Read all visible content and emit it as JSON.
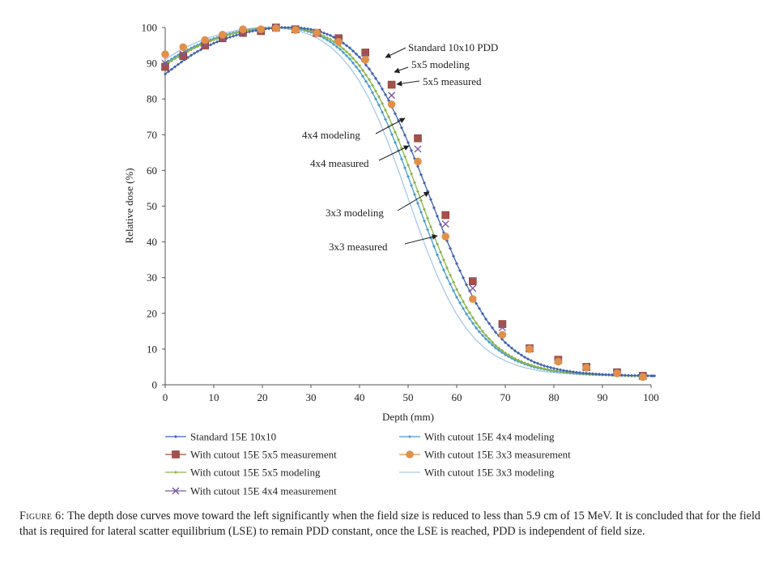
{
  "chart_data": {
    "type": "line",
    "xlabel": "Depth (mm)",
    "ylabel": "Relative dose (%)",
    "xlim": [
      0,
      100
    ],
    "ylim": [
      0,
      100
    ],
    "x_ticks": [
      0,
      10,
      20,
      30,
      40,
      50,
      60,
      70,
      80,
      90,
      100
    ],
    "y_ticks": [
      0,
      10,
      20,
      30,
      40,
      50,
      60,
      70,
      80,
      90,
      100
    ],
    "grid": false,
    "legend_position": "bottom",
    "series": [
      {
        "name": "Standard 15E 10x10",
        "style": "line-small-diamond",
        "color": "#3f62ad",
        "x": [
          0,
          2,
          4,
          6,
          8,
          10,
          12,
          14,
          16,
          18,
          20,
          22,
          24,
          26,
          28,
          30,
          32,
          34,
          36,
          38,
          40,
          42,
          44,
          46,
          48,
          50,
          52,
          54,
          56,
          58,
          60,
          62,
          64,
          66,
          68,
          70,
          72,
          74,
          76,
          78,
          80,
          82,
          84,
          86,
          88,
          90,
          92,
          94,
          96,
          98,
          100,
          101
        ],
        "y": [
          87,
          89,
          91,
          92.8,
          94.3,
          95.6,
          96.7,
          97.6,
          98.4,
          99,
          99.5,
          99.8,
          100,
          100,
          99.9,
          99.5,
          98.8,
          97.8,
          96.3,
          94.3,
          91.7,
          88.4,
          84.4,
          79.6,
          74,
          67.8,
          61.1,
          54.2,
          47.2,
          40.3,
          33.9,
          28,
          22.8,
          18.4,
          14.7,
          11.8,
          9.5,
          7.7,
          6.3,
          5.3,
          4.6,
          4,
          3.6,
          3.3,
          3.1,
          2.9,
          2.8,
          2.7,
          2.6,
          2.6,
          2.5,
          2.5
        ]
      },
      {
        "name": "With cutout 15E 5x5 measurement",
        "style": "square-marker",
        "color": "#a4514a",
        "x": [
          0,
          3.7,
          8.2,
          11.8,
          16,
          19.7,
          22.8,
          26.8,
          31.2,
          35.7,
          41.2,
          46.6,
          52,
          57.7,
          63.3,
          69.4,
          75,
          80.9,
          86.7,
          93,
          98.3
        ],
        "y": [
          89,
          92,
          95,
          97,
          98.5,
          99,
          100,
          99.5,
          98.5,
          97,
          93,
          84,
          69,
          47.5,
          29,
          17,
          10.2,
          7,
          5,
          3.5,
          2.5
        ]
      },
      {
        "name": "With cutout 15E 5x5 modeling",
        "style": "line-small-diamond",
        "color": "#8db448",
        "x": [
          0,
          2,
          4,
          6,
          8,
          10,
          12,
          14,
          16,
          18,
          20,
          22,
          24,
          26,
          28,
          30,
          32,
          34,
          36,
          38,
          40,
          42,
          44,
          46,
          48,
          50,
          52,
          54,
          56,
          58,
          60,
          62,
          64,
          66,
          68,
          70,
          72,
          74,
          76,
          78,
          80,
          82,
          84,
          86,
          88,
          90,
          92,
          94,
          96,
          98,
          100
        ],
        "y": [
          89.5,
          91.3,
          92.8,
          94.3,
          95.5,
          96.6,
          97.5,
          98.3,
          98.9,
          99.4,
          99.7,
          99.9,
          100,
          99.9,
          99.6,
          99,
          98,
          96.7,
          94.8,
          92.4,
          89.3,
          85.4,
          80.6,
          75,
          68.6,
          61.5,
          54.1,
          46.6,
          39.4,
          32.7,
          26.7,
          21.6,
          17.3,
          13.8,
          11,
          8.9,
          7.3,
          6.1,
          5.2,
          4.5,
          4,
          3.6,
          3.3,
          3.1,
          2.9,
          2.8,
          2.7,
          2.6,
          2.5,
          2.5,
          2.5
        ]
      },
      {
        "name": "With cutout 15E 4x4 measurement",
        "style": "x-marker",
        "color": "#7c5a9b",
        "x": [
          0,
          3.7,
          8.2,
          11.8,
          16,
          19.7,
          22.8,
          26.8,
          31.2,
          35.7,
          41.2,
          46.6,
          52,
          57.7,
          63.3,
          69.4,
          75,
          80.9,
          86.7,
          93,
          98.3
        ],
        "y": [
          90,
          92.5,
          95.5,
          97,
          98.5,
          99,
          100,
          99.5,
          98.5,
          96.5,
          92,
          81,
          66,
          45,
          27,
          16,
          10,
          6.8,
          4.8,
          3.3,
          2.5
        ]
      },
      {
        "name": "With cutout 15E 4x4 modeling",
        "style": "line-small-diamond",
        "color": "#4a9ccc",
        "x": [
          0,
          2,
          4,
          6,
          8,
          10,
          12,
          14,
          16,
          18,
          20,
          22,
          24,
          26,
          28,
          30,
          32,
          34,
          36,
          38,
          40,
          42,
          44,
          46,
          48,
          50,
          52,
          54,
          56,
          58,
          60,
          62,
          64,
          66,
          68,
          70,
          72,
          74,
          76,
          78,
          80,
          82,
          84,
          86,
          88,
          90,
          92,
          94,
          96,
          98,
          100
        ],
        "y": [
          90,
          91.8,
          93.3,
          94.7,
          95.9,
          96.9,
          97.8,
          98.5,
          99.1,
          99.5,
          99.8,
          100,
          100,
          99.8,
          99.4,
          98.7,
          97.6,
          96,
          93.9,
          91.2,
          87.8,
          83.5,
          78.3,
          72.3,
          65.6,
          58.3,
          50.8,
          43.4,
          36.4,
          30,
          24.5,
          19.8,
          15.9,
          12.8,
          10.3,
          8.4,
          6.9,
          5.8,
          4.9,
          4.3,
          3.8,
          3.5,
          3.2,
          3,
          2.9,
          2.8,
          2.7,
          2.6,
          2.5,
          2.5,
          2.5
        ]
      },
      {
        "name": "With cutout 15E 3x3 measurement",
        "style": "circle-marker",
        "color": "#e1904a",
        "x": [
          0,
          3.7,
          8.2,
          11.8,
          16,
          19.7,
          22.8,
          26.8,
          31.2,
          35.7,
          41.2,
          46.6,
          52,
          57.7,
          63.3,
          69.4,
          75,
          80.9,
          86.7,
          93,
          98.3
        ],
        "y": [
          92.5,
          94.5,
          96.5,
          98,
          99.5,
          99.5,
          99.8,
          99.3,
          98.5,
          96,
          91,
          78.5,
          62.5,
          41.5,
          24,
          14,
          10,
          6.5,
          4.8,
          3.2,
          2.2
        ]
      },
      {
        "name": "With cutout 15E 3x3 modeling",
        "style": "line",
        "color": "#a9c8e8",
        "x": [
          0,
          2,
          4,
          6,
          8,
          10,
          12,
          14,
          16,
          18,
          20,
          22,
          24,
          26,
          28,
          30,
          32,
          34,
          36,
          38,
          40,
          42,
          44,
          46,
          48,
          50,
          52,
          54,
          56,
          58,
          60,
          62,
          64,
          66,
          68,
          70,
          72,
          74,
          76,
          78,
          80,
          82,
          84,
          86,
          88,
          90,
          92,
          94,
          96,
          98,
          100
        ],
        "y": [
          91,
          92.8,
          94.3,
          95.6,
          96.7,
          97.6,
          98.4,
          99,
          99.5,
          99.8,
          100,
          100,
          99.8,
          99.4,
          98.8,
          97.9,
          96.5,
          94.6,
          92.1,
          88.9,
          84.9,
          80,
          74.1,
          67.4,
          60,
          52.2,
          44.5,
          37.2,
          30.5,
          24.7,
          19.7,
          15.7,
          12.5,
          10,
          8.1,
          6.7,
          5.6,
          4.8,
          4.2,
          3.7,
          3.4,
          3.2,
          3,
          2.8,
          2.7,
          2.6,
          2.6,
          2.5,
          2.5,
          2.5,
          2.5
        ]
      }
    ],
    "annotations": [
      {
        "text": "Standard 10x10 PDD",
        "target": [
          47,
          91
        ]
      },
      {
        "text": "5x5 modeling",
        "target": [
          45.5,
          87.5
        ]
      },
      {
        "text": "5x5 measured",
        "target": [
          47.5,
          84
        ]
      },
      {
        "text": "4x4 modeling",
        "target": [
          49.5,
          75
        ]
      },
      {
        "text": "4x4 measured",
        "target": [
          50.5,
          66
        ]
      },
      {
        "text": "3x3 modeling",
        "target": [
          54.5,
          54
        ]
      },
      {
        "text": "3x3 measured",
        "target": [
          56.5,
          41
        ]
      }
    ]
  },
  "caption": {
    "label": "Figure 6:",
    "text": "The depth dose curves move toward the left significantly when the field size is reduced to less than 5.9 cm of 15 MeV. It is concluded that for the field that is required for lateral scatter equilibrium (LSE) to remain PDD constant, once the LSE is reached, PDD is independent of field size."
  }
}
